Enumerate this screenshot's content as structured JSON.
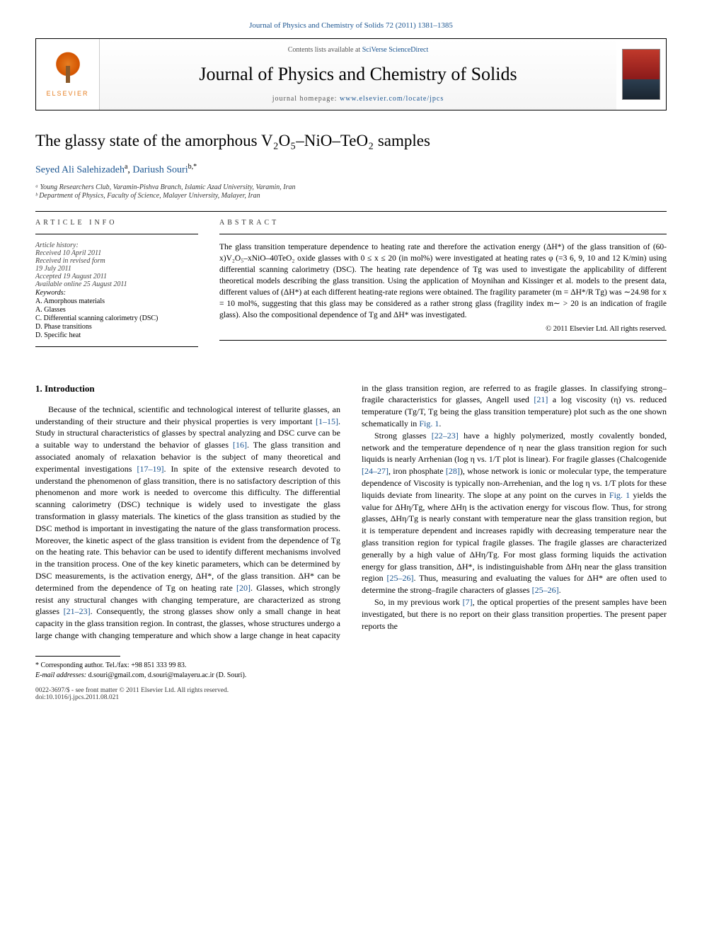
{
  "journal_ref": {
    "prefix": "Journal of Physics and Chemistry of Solids 72 (2011) 1381–1385",
    "link_text": "Journal of Physics and Chemistry of Solids 72 (2011) 1381–1385"
  },
  "banner": {
    "contents_prefix": "Contents lists available at ",
    "contents_link": "SciVerse ScienceDirect",
    "journal_name": "Journal of Physics and Chemistry of Solids",
    "homepage_prefix": "journal homepage: ",
    "homepage_link": "www.elsevier.com/locate/jpcs",
    "elsevier": "ELSEVIER"
  },
  "title": "The glassy state of the amorphous V₂O₅–NiO–TeO₂ samples",
  "authors": {
    "a1_name": "Seyed Ali Salehizadeh",
    "a1_sup": "a",
    "a2_name": "Dariush Souri",
    "a2_sup": "b,*"
  },
  "affiliations": {
    "a": "ᵃ Young Researchers Club, Varamin-Pishva Branch, Islamic Azad University, Varamin, Iran",
    "b": "ᵇ Department of Physics, Faculty of Science, Malayer University, Malayer, Iran"
  },
  "info_label": "ARTICLE INFO",
  "abstract_label": "ABSTRACT",
  "history": {
    "title": "Article history:",
    "l1": "Received 10 April 2011",
    "l2": "Received in revised form",
    "l3": "19 July 2011",
    "l4": "Accepted 19 August 2011",
    "l5": "Available online 25 August 2011"
  },
  "keywords": {
    "title": "Keywords:",
    "k1": "A. Amorphous materials",
    "k2": "A. Glasses",
    "k3": "C. Differential scanning calorimetry (DSC)",
    "k4": "D. Phase transitions",
    "k5": "D. Specific heat"
  },
  "abstract_text": "The glass transition temperature dependence to heating rate and therefore the activation energy (ΔH*) of the glass transition of (60-x)V₂O₅–xNiO–40TeO₂ oxide glasses with 0 ≤ x ≤ 20 (in mol%) were investigated at heating rates φ (=3 6, 9, 10 and 12 K/min) using differential scanning calorimetry (DSC). The heating rate dependence of Tg was used to investigate the applicability of different theoretical models describing the glass transition. Using the application of Moynihan and Kissinger et al. models to the present data, different values of (ΔH*) at each different heating-rate regions were obtained. The fragility parameter (m = ΔH*/R Tg) was ∼24.98 for x = 10 mol%, suggesting that this glass may be considered as a rather strong glass (fragility index m∼ > 20 is an indication of fragile glass). Also the compositional dependence of Tg and ΔH* was investigated.",
  "copyright": "© 2011 Elsevier Ltd. All rights reserved.",
  "intro_heading": "1.  Introduction",
  "para1a": "Because of the technical, scientific and technological interest of tellurite glasses, an understanding of their structure and their physical properties is very important ",
  "ref_1_15": "[1–15]",
  "para1b": ". Study in structural characteristics of glasses by spectral analyzing and DSC curve can be a suitable way to understand the behavior of glasses ",
  "ref_16": "[16]",
  "para1c": ". The glass transition and associated anomaly of relaxation behavior is the subject of many theoretical and experimental investigations ",
  "ref_17_19": "[17–19]",
  "para1d": ". In spite of the extensive research devoted to understand the phenomenon of glass transition, there is no satisfactory description of this phenomenon and more work is needed to overcome this difficulty. The differential scanning calorimetry (DSC) technique is widely used to investigate the glass transformation in glassy materials. The kinetics of the glass transition as studied by the DSC method is important in investigating the nature of the glass transformation process. Moreover, the kinetic aspect of the glass transition is evident from the dependence of Tg on the heating rate. This behavior can be used to identify different mechanisms involved in the transition process. One of the key kinetic parameters, which can be determined by DSC measurements, is the activation energy, ΔH*, of the glass transition. ΔH* can be determined from the dependence of Tg on heating rate ",
  "ref_20": "[20]",
  "para1e": ". Glasses, which strongly resist any structural changes with changing temperature, are characterized as strong glasses ",
  "ref_21_23": "[21–23]",
  "para1f": ". Consequently, the strong glasses show only a small change in heat capacity in the glass transition region. In contrast, the glasses, whose structures undergo a large change with changing temperature and which show a large change in heat capacity in the glass transition region, are referred to as fragile glasses. In classifying strong–fragile characteristics for glasses, Angell used ",
  "ref_21": "[21]",
  "para1g": " a log viscosity (η) vs. reduced temperature (Tg/T, Tg being the glass transition temperature) plot such as the one shown schematically in ",
  "ref_fig1a": "Fig. 1",
  "para1h": ".",
  "para2a": "Strong glasses ",
  "ref_22_23": "[22–23]",
  "para2b": " have a highly polymerized, mostly covalently bonded, network and the temperature dependence of η near the glass transition region for such liquids is nearly Arrhenian (log η vs. 1/T plot is linear). For fragile glasses (Chalcogenide ",
  "ref_24_27": "[24–27]",
  "para2c": ", iron phosphate ",
  "ref_28": "[28]",
  "para2d": "), whose network is ionic or molecular type, the temperature dependence of Viscosity is typically non-Arrehenian, and the log η vs. 1/T plots for these liquids deviate from linearity. The slope at any point on the curves in ",
  "ref_fig1b": "Fig. 1",
  "para2e": " yields the value for ΔHη/Tg, where ΔHη is the activation energy for viscous flow. Thus, for strong glasses, ΔHη/Tg is nearly constant with temperature near the glass transition region, but it is temperature dependent and increases rapidly with decreasing temperature near the glass transition region for typical fragile glasses. The fragile glasses are characterized generally by a high value of ΔHη/Tg. For most glass forming liquids the activation energy for glass transition, ΔH*, is indistinguishable from ΔHη near the glass transition region ",
  "ref_25_26a": "[25–26]",
  "para2f": ". Thus, measuring and evaluating the values for ΔH* are often used to determine the strong–fragile characters of glasses ",
  "ref_25_26b": "[25–26]",
  "para2g": ".",
  "para3a": "So, in my previous work ",
  "ref_7": "[7]",
  "para3b": ", the optical properties of the present samples have been investigated, but there is no report on their glass transition properties. The present paper reports the",
  "footnotes": {
    "corr": "* Corresponding author. Tel./fax: +98 851 333 99 83.",
    "email_label": "E-mail addresses: ",
    "email1": "d.souri@gmail.com",
    "email_sep": ", ",
    "email2": "d.souri@malayeru.ac.ir",
    "email_suffix": " (D. Souri)."
  },
  "doi": {
    "line1": "0022-3697/$ - see front matter © 2011 Elsevier Ltd. All rights reserved.",
    "line2": "doi:10.1016/j.jpcs.2011.08.021"
  },
  "colors": {
    "link": "#1a5490",
    "elsevier_orange": "#e67e22",
    "text": "#000000",
    "bg": "#ffffff"
  }
}
